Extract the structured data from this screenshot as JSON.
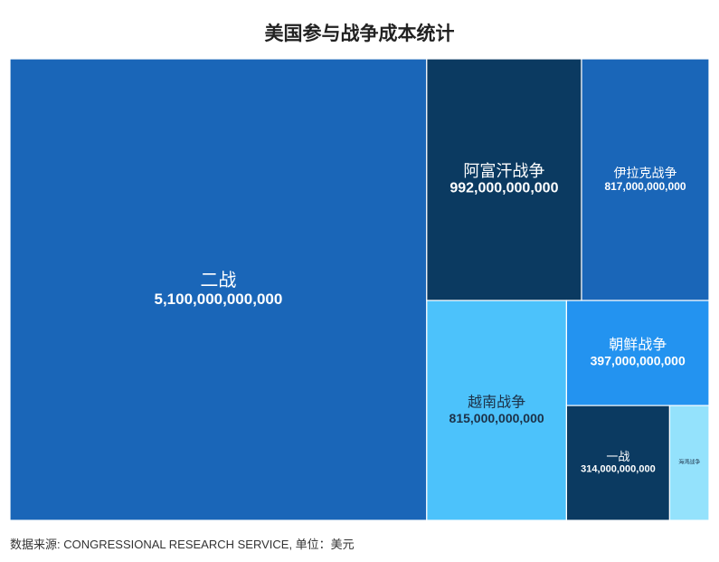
{
  "chart_data": {
    "type": "treemap",
    "title": "美国参与战争成本统计",
    "source_note": "数据来源: CONGRESSIONAL RESEARCH SERVICE, 单位：美元",
    "label_colors": {
      "light": "#ffffff",
      "dark": "#1c3148"
    },
    "items": [
      {
        "name": "二战",
        "value": 5100000000000,
        "value_label": "5,100,000,000,000",
        "color": "#1a66b8"
      },
      {
        "name": "阿富汗战争",
        "value": 992000000000,
        "value_label": "992,000,000,000",
        "color": "#0b3a61"
      },
      {
        "name": "伊拉克战争",
        "value": 817000000000,
        "value_label": "817,000,000,000",
        "color": "#1a66b8"
      },
      {
        "name": "越南战争",
        "value": 815000000000,
        "value_label": "815,000,000,000",
        "color": "#4cc2fb"
      },
      {
        "name": "朝鲜战争",
        "value": 397000000000,
        "value_label": "397,000,000,000",
        "color": "#2393f0"
      },
      {
        "name": "一战",
        "value": 314000000000,
        "value_label": "314,000,000,000",
        "color": "#0b3a61"
      },
      {
        "name": "海湾战争",
        "value": 120000000000,
        "color": "#94e2fc"
      }
    ]
  }
}
